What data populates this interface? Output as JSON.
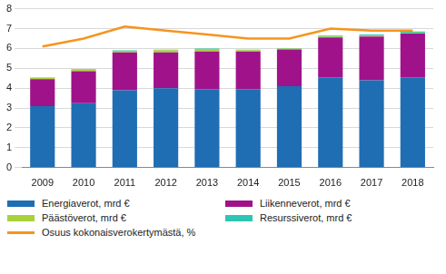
{
  "chart_data": {
    "type": "bar",
    "stacked": true,
    "grid": true,
    "legend": "bottom",
    "categories": [
      "2009",
      "2010",
      "2011",
      "2012",
      "2013",
      "2014",
      "2015",
      "2016",
      "2017",
      "2018"
    ],
    "ylim": [
      0,
      8
    ],
    "yticks": [
      0,
      1,
      2,
      3,
      4,
      5,
      6,
      7,
      8
    ],
    "series": [
      {
        "name": "Energiaverot, mrd €",
        "color": "#1f6db3",
        "values": [
          3.1,
          3.25,
          3.9,
          4.0,
          3.95,
          3.95,
          4.1,
          4.55,
          4.4,
          4.55
        ]
      },
      {
        "name": "Liikenneverot, mrd €",
        "color": "#a0128a",
        "values": [
          1.35,
          1.6,
          1.9,
          1.8,
          1.9,
          1.9,
          1.85,
          2.0,
          2.2,
          2.2
        ]
      },
      {
        "name": "Päästöverot, mrd €",
        "color": "#a9d13b",
        "values": [
          0.08,
          0.1,
          0.08,
          0.12,
          0.12,
          0.07,
          0.05,
          0.05,
          0.05,
          0.05
        ]
      },
      {
        "name": "Resurssiverot, mrd €",
        "color": "#2ec4b6",
        "values": [
          0.02,
          0.02,
          0.02,
          0.02,
          0.02,
          0.02,
          0.02,
          0.05,
          0.05,
          0.05
        ]
      },
      {
        "name": "Osuus kokonaisverokertymästä, %",
        "color": "#f7941d",
        "type": "line",
        "marker": "none",
        "values": [
          6.1,
          6.5,
          7.1,
          6.9,
          6.7,
          6.5,
          6.5,
          7.0,
          6.9,
          6.9
        ]
      }
    ]
  }
}
